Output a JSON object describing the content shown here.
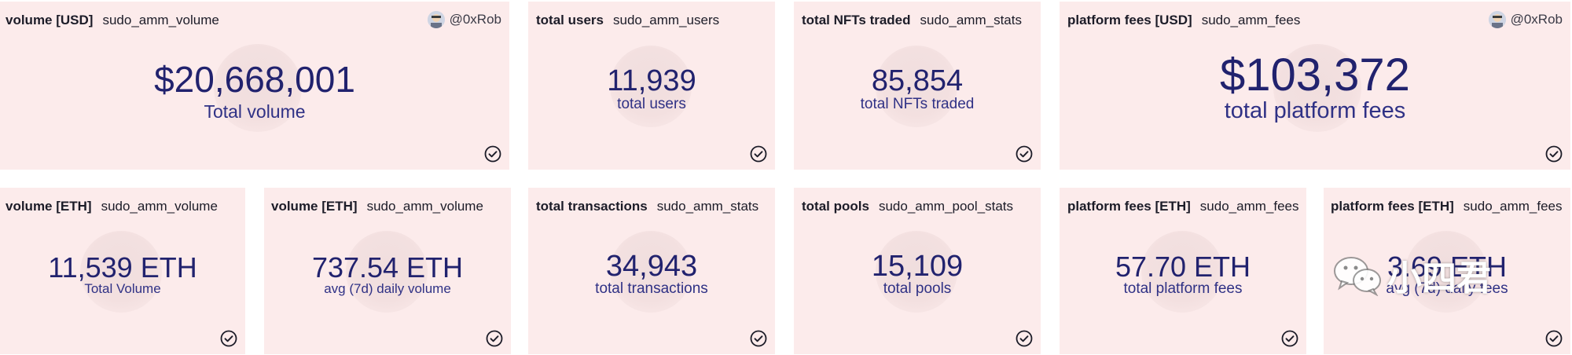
{
  "cards": [
    {
      "title": "volume [USD]",
      "query": "sudo_amm_volume",
      "author": "@0xRob",
      "value": "$20,668,001",
      "label": "Total volume"
    },
    {
      "title": "total users",
      "query": "sudo_amm_users",
      "value": "11,939",
      "label": "total users"
    },
    {
      "title": "total NFTs traded",
      "query": "sudo_amm_stats",
      "value": "85,854",
      "label": "total NFTs traded"
    },
    {
      "title": "platform fees [USD]",
      "query": "sudo_amm_fees",
      "author": "@0xRob",
      "value": "$103,372",
      "label": "total platform fees"
    },
    {
      "title": "volume [ETH]",
      "query": "sudo_amm_volume",
      "value": "11,539 ETH",
      "label": "Total Volume"
    },
    {
      "title": "volume [ETH]",
      "query": "sudo_amm_volume",
      "value": "737.54 ETH",
      "label": "avg (7d) daily volume"
    },
    {
      "title": "total transactions",
      "query": "sudo_amm_stats",
      "value": "34,943",
      "label": "total transactions"
    },
    {
      "title": "total pools",
      "query": "sudo_amm_pool_stats",
      "value": "15,109",
      "label": "total pools"
    },
    {
      "title": "platform fees [ETH]",
      "query": "sudo_amm_fees",
      "value": "57.70 ETH",
      "label": "total platform fees"
    },
    {
      "title": "platform fees [ETH]",
      "query": "sudo_amm_fees",
      "value": "3.69 ETH",
      "label": "avg (7d) daily fees"
    }
  ],
  "watermark": {
    "text": "小四君"
  },
  "icons": {
    "author_avatar": "avatar-icon",
    "status": "check-circle-icon",
    "watermark": "wechat-icon"
  },
  "colors": {
    "card_bg": "#fcebeb",
    "value_text": "#21226e",
    "label_text": "#2f3185"
  }
}
